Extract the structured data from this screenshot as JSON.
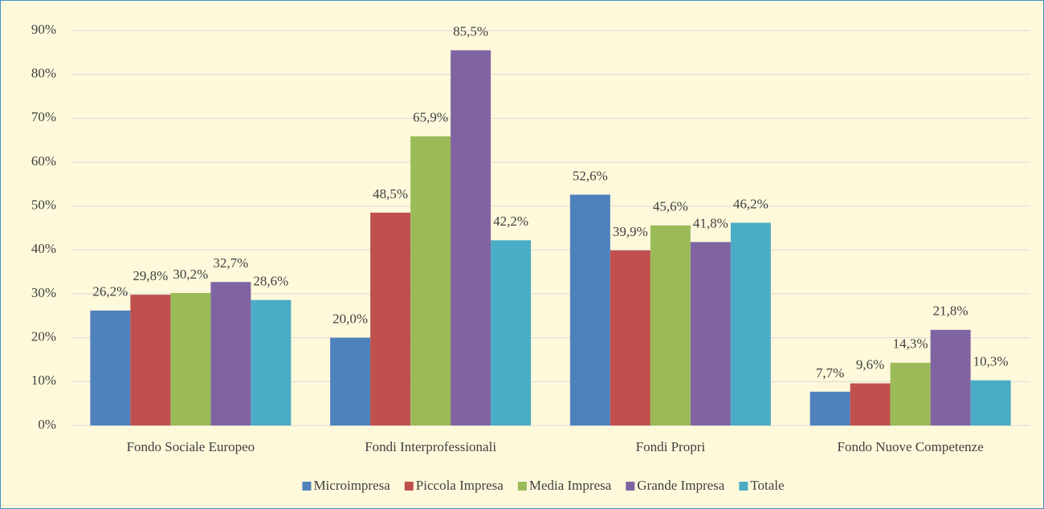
{
  "chart_data": {
    "type": "bar",
    "categories": [
      "Fondo Sociale Europeo",
      "Fondi Interprofessionali",
      "Fondi Propri",
      "Fondo Nuove Competenze"
    ],
    "series": [
      {
        "name": "Microimpresa",
        "color": "#4f81bd",
        "values": [
          26.2,
          20.0,
          52.6,
          7.7
        ],
        "value_labels": [
          "26,2%",
          "20,0%",
          "52,6%",
          "7,7%"
        ]
      },
      {
        "name": "Piccola Impresa",
        "color": "#c0504d",
        "values": [
          29.8,
          48.5,
          39.9,
          9.6
        ],
        "value_labels": [
          "29,8%",
          "48,5%",
          "39,9%",
          "9,6%"
        ]
      },
      {
        "name": "Media Impresa",
        "color": "#9bbb59",
        "values": [
          30.2,
          65.9,
          45.6,
          14.3
        ],
        "value_labels": [
          "30,2%",
          "65,9%",
          "45,6%",
          "14,3%"
        ]
      },
      {
        "name": "Grande Impresa",
        "color": "#8064a2",
        "values": [
          32.7,
          85.5,
          41.8,
          21.8
        ],
        "value_labels": [
          "32,7%",
          "85,5%",
          "41,8%",
          "21,8%"
        ]
      },
      {
        "name": "Totale",
        "color": "#4bacc6",
        "values": [
          28.6,
          42.2,
          46.2,
          10.3
        ],
        "value_labels": [
          "28,6%",
          "42,2%",
          "46,2%",
          "10,3%"
        ]
      }
    ],
    "ylim": [
      0,
      90
    ],
    "yticks": [
      {
        "value": 0,
        "label": "0%"
      },
      {
        "value": 10,
        "label": "10%"
      },
      {
        "value": 20,
        "label": "20%"
      },
      {
        "value": 30,
        "label": "30%"
      },
      {
        "value": 40,
        "label": "40%"
      },
      {
        "value": 50,
        "label": "50%"
      },
      {
        "value": 60,
        "label": "60%"
      },
      {
        "value": 70,
        "label": "70%"
      },
      {
        "value": 80,
        "label": "80%"
      },
      {
        "value": 90,
        "label": "90%"
      }
    ],
    "grid": true,
    "legend": "bottom"
  }
}
